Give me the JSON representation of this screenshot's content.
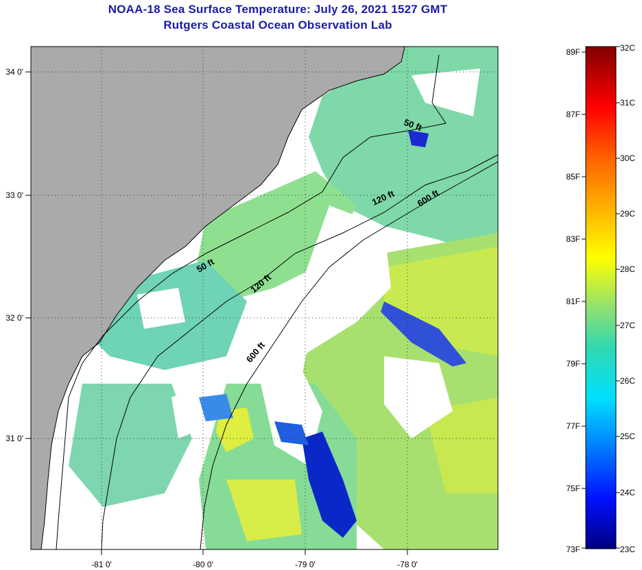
{
  "titles": {
    "line1": "NOAA-18 Sea Surface Temperature:  July 26, 2021 1527 GMT",
    "line2": "Rutgers Coastal Ocean Observation Lab"
  },
  "map": {
    "lon_labels": [
      "-81 0'",
      "-80 0'",
      "-79 0'",
      "-78 0'"
    ],
    "lat_labels": [
      "34 0'",
      "33 0'",
      "32 0'",
      "31 0'"
    ],
    "isobaths": [
      {
        "label": "50 ft"
      },
      {
        "label": "120 ft"
      },
      {
        "label": "600 ft"
      }
    ],
    "isobath_label_instances": [
      "50 ft",
      "120 ft",
      "600 ft",
      "50 ft",
      "120 ft",
      "600 ft"
    ]
  },
  "colorbar": {
    "fahrenheit_labels": [
      "89F",
      "87F",
      "85F",
      "83F",
      "81F",
      "79F",
      "77F",
      "75F",
      "73F"
    ],
    "celsius_labels": [
      "32C",
      "31C",
      "30C",
      "29C",
      "28C",
      "27C",
      "26C",
      "25C",
      "24C",
      "23C"
    ],
    "colors": {
      "min": "#000080",
      "blue": "#0030ff",
      "cyan": "#00e0ff",
      "green": "#40d080",
      "yellow": "#ffff00",
      "orange": "#ff8000",
      "red": "#ff0000",
      "max": "#800000"
    }
  },
  "legend_colors": {
    "land": "#aaaaaa",
    "cloud": "#ffffff",
    "water_base": "#7ed8a8"
  }
}
